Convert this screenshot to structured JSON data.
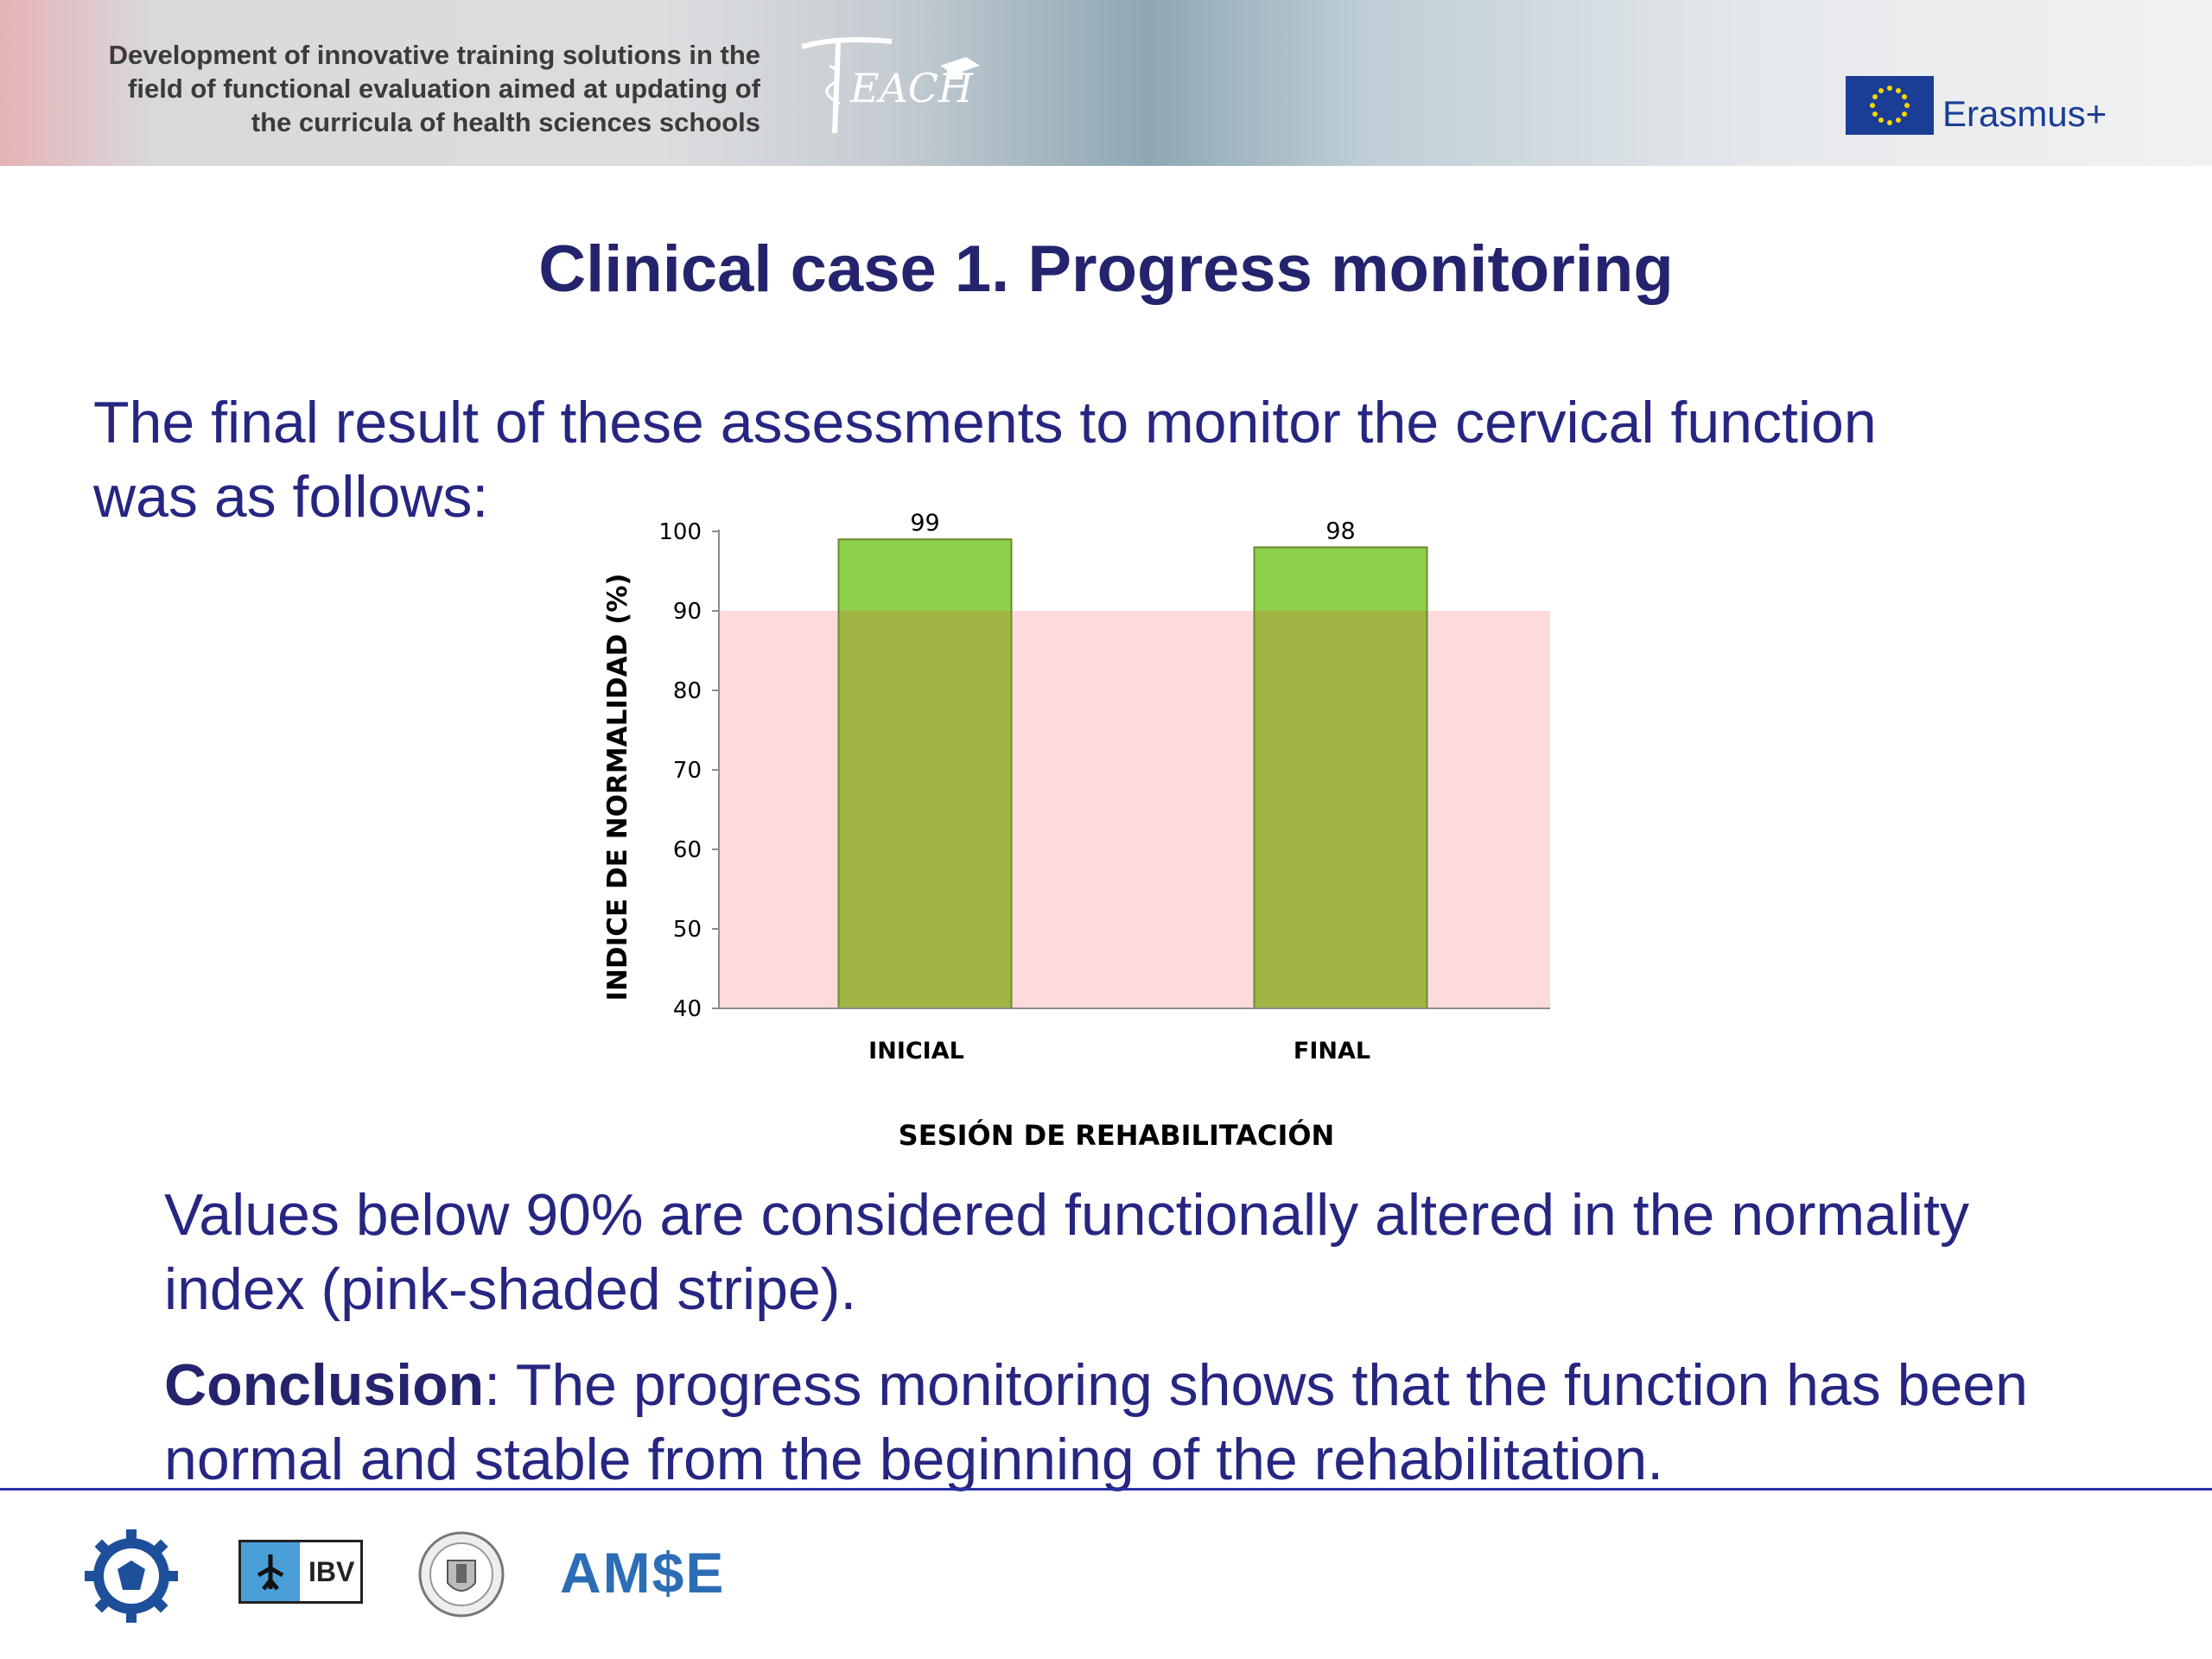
{
  "header": {
    "project_lines": [
      "Development of innovative training solutions in the",
      "field of functional evaluation aimed at updating of",
      "the curricula of health sciences schools"
    ],
    "teach_logo_text": "EACH",
    "erasmus_label": "Erasmus+"
  },
  "slide": {
    "title": "Clinical case 1. Progress monitoring",
    "intro_line1": "The final result of these assessments to monitor the cervical function",
    "intro_line2": "was as follows:",
    "note_line1": "Values below 90% are considered functionally altered in the normality",
    "note_line2": "index (pink-shaded stripe).",
    "conclusion_label": "Conclusion",
    "conclusion_rest": ": The progress monitoring shows that the function has been",
    "conclusion_line2": "normal and stable from the beginning of the rehabilitation."
  },
  "chart_data": {
    "type": "bar",
    "categories": [
      "INICIAL",
      "FINAL"
    ],
    "values": [
      99,
      98
    ],
    "data_labels": [
      "99",
      "98"
    ],
    "xlabel": "SESIÓN DE REHABILITACIÓN",
    "ylabel": "INDICE DE NORMALIDAD (%)",
    "ylim": [
      40,
      100
    ],
    "yticks": [
      40,
      50,
      60,
      70,
      80,
      90,
      100
    ],
    "threshold_band": {
      "from": 40,
      "to": 90
    },
    "grid": false,
    "legend": "none",
    "colors": {
      "bar_above_threshold": "#8ed14d",
      "bar_in_band": "#a2b443",
      "bar_edge": "#6c8a2c",
      "band": "#fddadb"
    }
  },
  "footer": {
    "ibv_text": "IBV",
    "amse_text": "AM$E"
  }
}
